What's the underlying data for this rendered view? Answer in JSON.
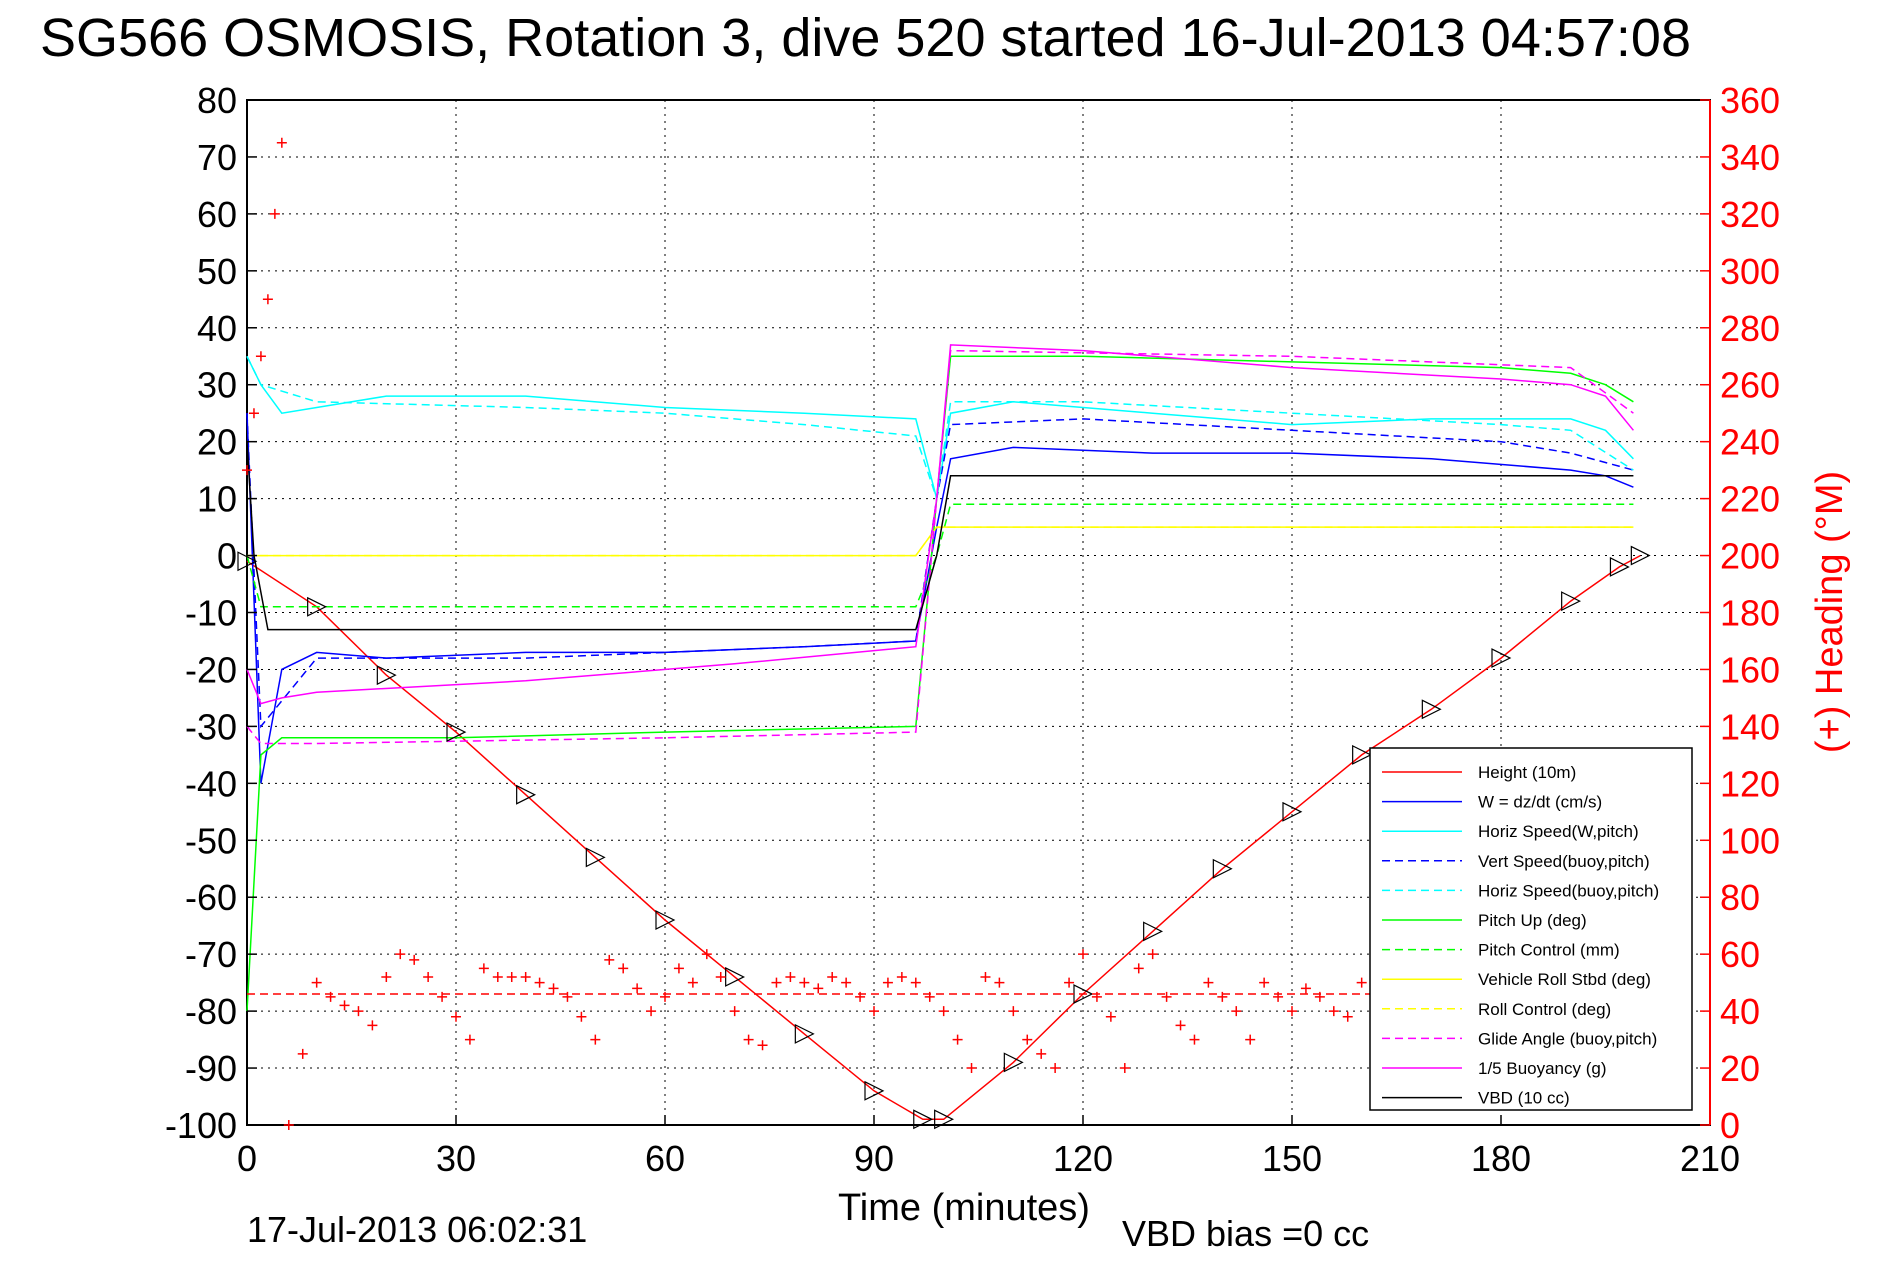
{
  "chart_data": {
    "type": "line",
    "title": "SG566 OSMOSIS, Rotation 3, dive 520 started 16-Jul-2013 04:57:08",
    "xlabel": "Time (minutes)",
    "ylabel_right": "(+) Heading (°M)",
    "xlim": [
      0,
      210
    ],
    "ylim_left": [
      -100,
      80
    ],
    "ylim_right": [
      0,
      360
    ],
    "x_ticks": [
      0,
      30,
      60,
      90,
      120,
      150,
      180,
      210
    ],
    "y_ticks_left": [
      80,
      70,
      60,
      50,
      40,
      30,
      20,
      10,
      0,
      -10,
      -20,
      -30,
      -40,
      -50,
      -60,
      -70,
      -80,
      -90,
      -100
    ],
    "y_ticks_right": [
      360,
      340,
      320,
      300,
      280,
      260,
      240,
      220,
      200,
      180,
      160,
      140,
      120,
      100,
      80,
      60,
      40,
      20,
      0
    ],
    "grid": true,
    "legend_position": "bottom-right",
    "series": [
      {
        "name": "Height (10m)",
        "color": "#ff0000",
        "style": "solid",
        "x": [
          0,
          10,
          20,
          30,
          40,
          50,
          60,
          70,
          80,
          90,
          97,
          100,
          110,
          120,
          130,
          140,
          150,
          160,
          170,
          180,
          190,
          197,
          200
        ],
        "y": [
          -1,
          -9,
          -21,
          -31,
          -42,
          -53,
          -64,
          -74,
          -84,
          -94,
          -99,
          -99,
          -89,
          -77,
          -66,
          -55,
          -45,
          -35,
          -27,
          -18,
          -8,
          -2,
          0
        ]
      },
      {
        "name": "W = dz/dt (cm/s)",
        "color": "#0000ff",
        "style": "solid",
        "x": [
          0,
          2,
          5,
          10,
          20,
          40,
          60,
          80,
          96,
          99,
          101,
          110,
          130,
          150,
          170,
          190,
          195,
          199
        ],
        "y": [
          25,
          -40,
          -20,
          -17,
          -18,
          -17,
          -17,
          -16,
          -15,
          5,
          17,
          19,
          18,
          18,
          17,
          15,
          14,
          12
        ]
      },
      {
        "name": "Horiz Speed(W,pitch)",
        "color": "#00ffff",
        "style": "solid",
        "x": [
          0,
          2,
          5,
          10,
          20,
          40,
          60,
          80,
          96,
          99,
          101,
          110,
          130,
          150,
          170,
          190,
          195,
          199
        ],
        "y": [
          35,
          30,
          25,
          26,
          28,
          28,
          26,
          25,
          24,
          10,
          25,
          27,
          25,
          23,
          24,
          24,
          22,
          17
        ]
      },
      {
        "name": "Vert Speed(buoy,pitch)",
        "color": "#0000ff",
        "style": "dashed",
        "x": [
          0,
          2,
          10,
          40,
          60,
          80,
          96,
          99,
          101,
          120,
          150,
          180,
          190,
          199
        ],
        "y": [
          25,
          -30,
          -18,
          -18,
          -17,
          -16,
          -15,
          10,
          23,
          24,
          22,
          20,
          18,
          15
        ]
      },
      {
        "name": "Horiz Speed(buoy,pitch)",
        "color": "#00ffff",
        "style": "dashed",
        "x": [
          0,
          2,
          10,
          40,
          60,
          80,
          96,
          99,
          101,
          120,
          150,
          180,
          190,
          199
        ],
        "y": [
          35,
          30,
          27,
          26,
          25,
          23,
          21,
          10,
          27,
          27,
          25,
          23,
          22,
          15
        ]
      },
      {
        "name": "Pitch Up (deg)",
        "color": "#00ff00",
        "style": "solid",
        "x": [
          0,
          2,
          5,
          10,
          30,
          60,
          96,
          99,
          101,
          120,
          150,
          180,
          190,
          195,
          199
        ],
        "y": [
          -80,
          -35,
          -32,
          -32,
          -32,
          -31,
          -30,
          10,
          35,
          35,
          34,
          33,
          32,
          30,
          27
        ]
      },
      {
        "name": "Pitch Control (mm)",
        "color": "#00ff00",
        "style": "dashed",
        "x": [
          0,
          2,
          96,
          99,
          101,
          199
        ],
        "y": [
          0,
          -9,
          -9,
          0,
          9,
          9
        ]
      },
      {
        "name": "Vehicle Roll Stbd (deg)",
        "color": "#ffff00",
        "style": "solid",
        "x": [
          0,
          2,
          96,
          99,
          101,
          199
        ],
        "y": [
          0,
          0,
          0,
          5,
          5,
          5
        ]
      },
      {
        "name": "Roll Control (deg)",
        "color": "#ffff00",
        "style": "dashed",
        "x": [
          0,
          2,
          96,
          99,
          101,
          199
        ],
        "y": [
          0,
          0,
          0,
          5,
          5,
          5
        ]
      },
      {
        "name": "Glide Angle (buoy,pitch)",
        "color": "#ff00ff",
        "style": "dashed",
        "x": [
          0,
          2,
          10,
          60,
          96,
          99,
          101,
          150,
          190,
          199
        ],
        "y": [
          -30,
          -33,
          -33,
          -32,
          -31,
          10,
          36,
          35,
          33,
          25
        ]
      },
      {
        "name": "1/5 Buoyancy (g)",
        "color": "#ff00ff",
        "style": "solid",
        "x": [
          0,
          2,
          5,
          10,
          40,
          70,
          96,
          99,
          101,
          120,
          150,
          180,
          190,
          195,
          199
        ],
        "y": [
          -20,
          -26,
          -25,
          -24,
          -22,
          -19,
          -16,
          10,
          37,
          36,
          33,
          31,
          30,
          28,
          22
        ]
      },
      {
        "name": "VBD (10 cc)",
        "color": "#000000",
        "style": "solid",
        "x": [
          0,
          1,
          3,
          60,
          96,
          99,
          101,
          199
        ],
        "y": [
          20,
          0,
          -13,
          -13,
          -13,
          0,
          14,
          14
        ]
      }
    ],
    "heading_series": {
      "color": "#ff0000",
      "marker": "+",
      "axis": "right",
      "reference_line_deg": 46,
      "x": [
        0,
        1,
        2,
        3,
        4,
        5,
        6,
        8,
        10,
        12,
        14,
        16,
        18,
        20,
        22,
        24,
        26,
        28,
        30,
        32,
        34,
        36,
        38,
        40,
        42,
        44,
        46,
        48,
        50,
        52,
        54,
        56,
        58,
        60,
        62,
        64,
        66,
        68,
        70,
        72,
        74,
        76,
        78,
        80,
        82,
        84,
        86,
        88,
        90,
        92,
        94,
        96,
        98,
        100,
        102,
        104,
        106,
        108,
        110,
        112,
        114,
        116,
        118,
        120,
        122,
        124,
        126,
        128,
        130,
        132,
        134,
        136,
        138,
        140,
        142,
        144,
        146,
        148,
        150,
        152,
        154,
        156,
        158,
        160
      ],
      "y": [
        230,
        250,
        270,
        290,
        320,
        345,
        0,
        25,
        50,
        45,
        42,
        40,
        35,
        52,
        60,
        58,
        52,
        45,
        38,
        30,
        55,
        52,
        52,
        52,
        50,
        48,
        45,
        38,
        30,
        58,
        55,
        48,
        40,
        45,
        55,
        50,
        60,
        52,
        40,
        30,
        28,
        50,
        52,
        50,
        48,
        52,
        50,
        45,
        40,
        50,
        52,
        50,
        45,
        40,
        30,
        20,
        52,
        50,
        40,
        30,
        25,
        20,
        50,
        60,
        45,
        38,
        20,
        55,
        60,
        45,
        35,
        30,
        50,
        45,
        40,
        30,
        50,
        45,
        40,
        48,
        45,
        40,
        38,
        50
      ]
    }
  },
  "footer": {
    "timestamp": "17-Jul-2013 06:02:31",
    "vbd_bias": "VBD bias =0 cc"
  }
}
